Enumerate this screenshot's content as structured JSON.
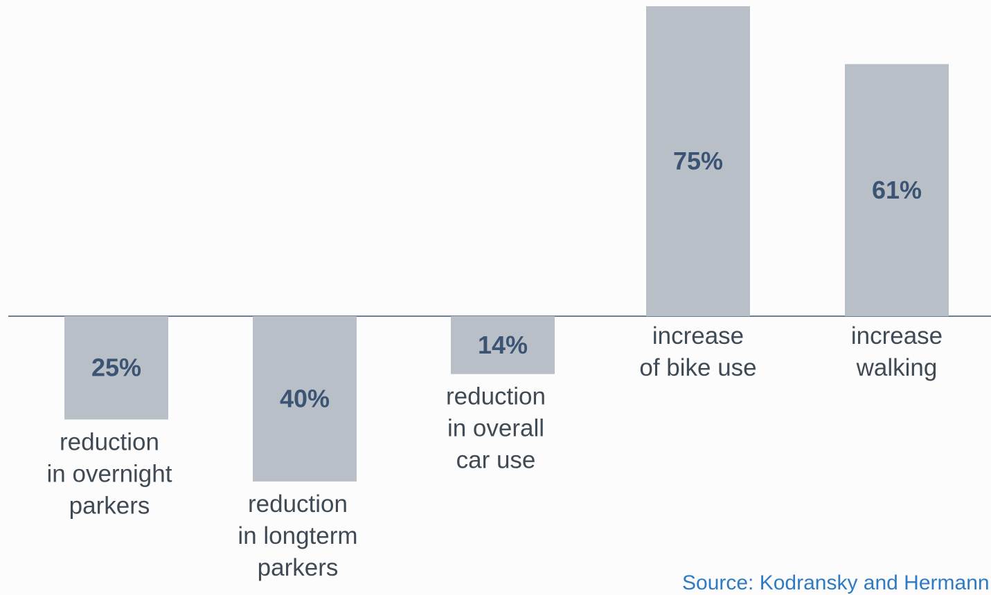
{
  "chart_data": {
    "type": "bar",
    "categories": [
      [
        "reduction",
        "in overnight",
        "parkers"
      ],
      [
        "reduction",
        "in longterm",
        "parkers"
      ],
      [
        "reduction",
        "in overall",
        "car use"
      ],
      [
        "increase",
        "of bike use"
      ],
      [
        "increase",
        "walking"
      ]
    ],
    "values": [
      -25,
      -40,
      -14,
      75,
      61
    ],
    "value_labels": [
      "25%",
      "40%",
      "14%",
      "75%",
      "61%"
    ],
    "ylim": [
      -65,
      75
    ],
    "grid": false,
    "bar_color": "#b8bfc7",
    "value_color": "#3c5473",
    "label_color": "#3f4a55"
  },
  "source": "Source: Kodransky and Hermann"
}
